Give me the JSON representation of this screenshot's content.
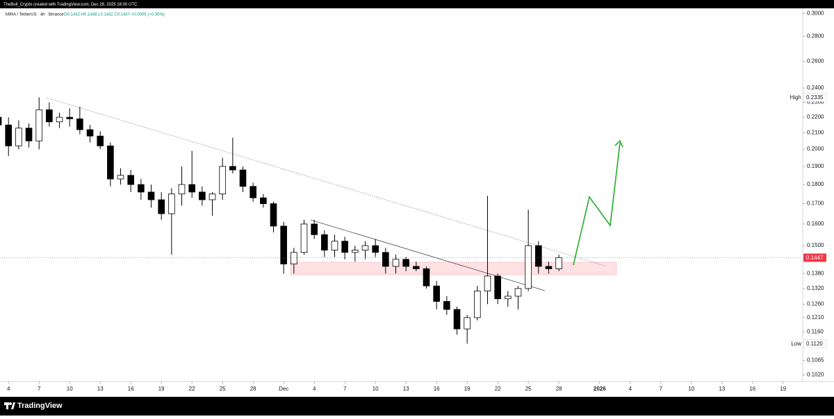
{
  "header": {
    "credit": "TheBull_Crypto created with TradingView.com, Dec 28, 2025 16:00 UTC"
  },
  "footer": {
    "brand": "TradingView"
  },
  "chart_data": {
    "type": "candlestick",
    "title": "MIRA / TetherUS · 4h · Binance",
    "ohlc_text": "O0.1442 H0.1448 L0.1442 C0.1447 +0.0005 (+0.35%)",
    "log_scale": true,
    "up_color": "#ffffff",
    "down_color": "#000000",
    "x": [
      "2025-11-03",
      "2025-11-04",
      "2025-11-05",
      "2025-11-06",
      "2025-11-07",
      "2025-11-08",
      "2025-11-09",
      "2025-11-10",
      "2025-11-11",
      "2025-11-12",
      "2025-11-13",
      "2025-11-14",
      "2025-11-15",
      "2025-11-16",
      "2025-11-17",
      "2025-11-18",
      "2025-11-19",
      "2025-11-20",
      "2025-11-21",
      "2025-11-22",
      "2025-11-23",
      "2025-11-24",
      "2025-11-25",
      "2025-11-26",
      "2025-11-27",
      "2025-11-28",
      "2025-11-29",
      "2025-11-30",
      "2025-12-01",
      "2025-12-02",
      "2025-12-03",
      "2025-12-04",
      "2025-12-05",
      "2025-12-06",
      "2025-12-07",
      "2025-12-08",
      "2025-12-09",
      "2025-12-10",
      "2025-12-11",
      "2025-12-12",
      "2025-12-13",
      "2025-12-14",
      "2025-12-15",
      "2025-12-16",
      "2025-12-17",
      "2025-12-18",
      "2025-12-19",
      "2025-12-20",
      "2025-12-21",
      "2025-12-22",
      "2025-12-23",
      "2025-12-24",
      "2025-12-25",
      "2025-12-26",
      "2025-12-27",
      "2025-12-28"
    ],
    "open": [
      0.22,
      0.215,
      0.202,
      0.213,
      0.205,
      0.225,
      0.217,
      0.22,
      0.219,
      0.212,
      0.208,
      0.202,
      0.183,
      0.185,
      0.18,
      0.176,
      0.172,
      0.165,
      0.175,
      0.18,
      0.176,
      0.172,
      0.175,
      0.19,
      0.188,
      0.179,
      0.173,
      0.17,
      0.159,
      0.142,
      0.147,
      0.16,
      0.155,
      0.148,
      0.152,
      0.147,
      0.148,
      0.15,
      0.147,
      0.141,
      0.144,
      0.141,
      0.14,
      0.133,
      0.127,
      0.124,
      0.117,
      0.121,
      0.131,
      0.137,
      0.128,
      0.129,
      0.132,
      0.15,
      0.141,
      0.14
    ],
    "high": [
      0.23,
      0.22,
      0.218,
      0.216,
      0.2335,
      0.23,
      0.223,
      0.226,
      0.227,
      0.215,
      0.211,
      0.204,
      0.189,
      0.188,
      0.183,
      0.18,
      0.176,
      0.178,
      0.19,
      0.199,
      0.179,
      0.176,
      0.195,
      0.207,
      0.19,
      0.181,
      0.175,
      0.171,
      0.161,
      0.149,
      0.162,
      0.162,
      0.157,
      0.155,
      0.154,
      0.15,
      0.152,
      0.153,
      0.149,
      0.146,
      0.145,
      0.143,
      0.141,
      0.135,
      0.129,
      0.125,
      0.122,
      0.133,
      0.174,
      0.138,
      0.131,
      0.133,
      0.167,
      0.152,
      0.143,
      0.146
    ],
    "low": [
      0.212,
      0.196,
      0.2,
      0.201,
      0.2,
      0.214,
      0.213,
      0.214,
      0.209,
      0.204,
      0.2,
      0.179,
      0.18,
      0.176,
      0.172,
      0.168,
      0.162,
      0.146,
      0.169,
      0.173,
      0.169,
      0.164,
      0.172,
      0.186,
      0.176,
      0.171,
      0.168,
      0.156,
      0.138,
      0.138,
      0.146,
      0.153,
      0.145,
      0.145,
      0.144,
      0.143,
      0.144,
      0.145,
      0.138,
      0.138,
      0.139,
      0.139,
      0.132,
      0.124,
      0.122,
      0.115,
      0.112,
      0.12,
      0.126,
      0.126,
      0.125,
      0.124,
      0.131,
      0.138,
      0.138,
      0.139
    ],
    "close": [
      0.215,
      0.202,
      0.213,
      0.205,
      0.225,
      0.217,
      0.22,
      0.219,
      0.212,
      0.208,
      0.202,
      0.183,
      0.185,
      0.18,
      0.176,
      0.172,
      0.165,
      0.175,
      0.18,
      0.176,
      0.172,
      0.175,
      0.19,
      0.188,
      0.179,
      0.173,
      0.17,
      0.159,
      0.142,
      0.147,
      0.16,
      0.155,
      0.148,
      0.152,
      0.147,
      0.148,
      0.15,
      0.147,
      0.141,
      0.144,
      0.141,
      0.14,
      0.133,
      0.127,
      0.124,
      0.117,
      0.121,
      0.131,
      0.137,
      0.128,
      0.129,
      0.132,
      0.15,
      0.141,
      0.14,
      0.1447
    ],
    "xlim": [
      "2025-11-03T04:00",
      "2026-01-20T14:00"
    ],
    "xticks": [
      {
        "value": "2025-11-04",
        "label": "4"
      },
      {
        "value": "2025-11-07",
        "label": "7"
      },
      {
        "value": "2025-11-10",
        "label": "10"
      },
      {
        "value": "2025-11-13",
        "label": "13"
      },
      {
        "value": "2025-11-16",
        "label": "16"
      },
      {
        "value": "2025-11-19",
        "label": "19"
      },
      {
        "value": "2025-11-22",
        "label": "22"
      },
      {
        "value": "2025-11-25",
        "label": "25"
      },
      {
        "value": "2025-11-28",
        "label": "28"
      },
      {
        "value": "2025-12-01",
        "label": "Dec"
      },
      {
        "value": "2025-12-04",
        "label": "4"
      },
      {
        "value": "2025-12-07",
        "label": "7"
      },
      {
        "value": "2025-12-10",
        "label": "10"
      },
      {
        "value": "2025-12-13",
        "label": "13"
      },
      {
        "value": "2025-12-16",
        "label": "16"
      },
      {
        "value": "2025-12-19",
        "label": "19"
      },
      {
        "value": "2025-12-22",
        "label": "22"
      },
      {
        "value": "2025-12-25",
        "label": "25"
      },
      {
        "value": "2025-12-28",
        "label": "28"
      },
      {
        "value": "2026-01-01",
        "label": "2026"
      },
      {
        "value": "2026-01-04",
        "label": "4"
      },
      {
        "value": "2026-01-07",
        "label": "7"
      },
      {
        "value": "2026-01-10",
        "label": "10"
      },
      {
        "value": "2026-01-13",
        "label": "13"
      },
      {
        "value": "2026-01-16",
        "label": "16"
      },
      {
        "value": "2026-01-19",
        "label": "19"
      }
    ],
    "ylim": [
      0.1,
      0.3045
    ],
    "yticks": [
      {
        "value": 0.3,
        "label": "0.3000"
      },
      {
        "value": 0.28,
        "label": "0.2800"
      },
      {
        "value": 0.26,
        "label": "0.2600"
      },
      {
        "value": 0.24,
        "label": "0.2400"
      },
      {
        "value": 0.23,
        "label": "0.2300"
      },
      {
        "value": 0.22,
        "label": "0.2200"
      },
      {
        "value": 0.21,
        "label": "0.2100"
      },
      {
        "value": 0.2,
        "label": "0.2000"
      },
      {
        "value": 0.19,
        "label": "0.1900"
      },
      {
        "value": 0.18,
        "label": "0.1800"
      },
      {
        "value": 0.17,
        "label": "0.1700"
      },
      {
        "value": 0.16,
        "label": "0.1600"
      },
      {
        "value": 0.15,
        "label": "0.1500"
      },
      {
        "value": 0.138,
        "label": "0.1380"
      },
      {
        "value": 0.132,
        "label": "0.1320"
      },
      {
        "value": 0.126,
        "label": "0.1260"
      },
      {
        "value": 0.121,
        "label": "0.1210"
      },
      {
        "value": 0.116,
        "label": "0.1160"
      },
      {
        "value": 0.1065,
        "label": "0.1065"
      },
      {
        "value": 0.102,
        "label": "0.1020"
      }
    ],
    "markers": [
      {
        "name": "High",
        "value": 0.2335,
        "value_label": "0.2335"
      },
      {
        "name": "Low",
        "value": 0.112,
        "value_label": "0.1120"
      }
    ],
    "last_price": {
      "value": 0.1447,
      "label": "0.1447",
      "color": "#f23645"
    }
  }
}
